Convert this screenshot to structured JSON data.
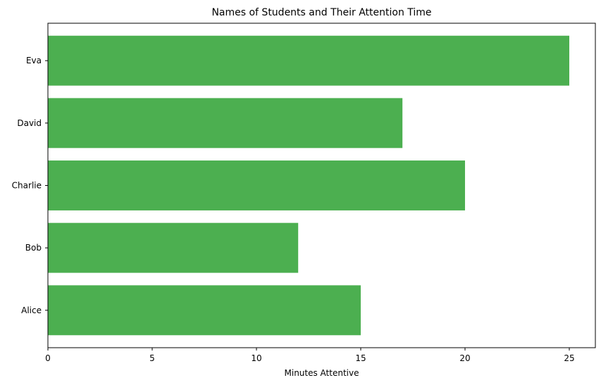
{
  "chart_data": {
    "type": "bar",
    "orientation": "horizontal",
    "title": "Names of Students and Their Attention Time",
    "xlabel": "Minutes Attentive",
    "ylabel": "",
    "categories": [
      "Alice",
      "Bob",
      "Charlie",
      "David",
      "Eva"
    ],
    "values": [
      15,
      12,
      20,
      17,
      25
    ],
    "xlim": [
      0,
      26.25
    ],
    "xticks": [
      0,
      5,
      10,
      15,
      20,
      25
    ],
    "bar_color": "#4caf50",
    "grid": false,
    "legend": "none"
  }
}
